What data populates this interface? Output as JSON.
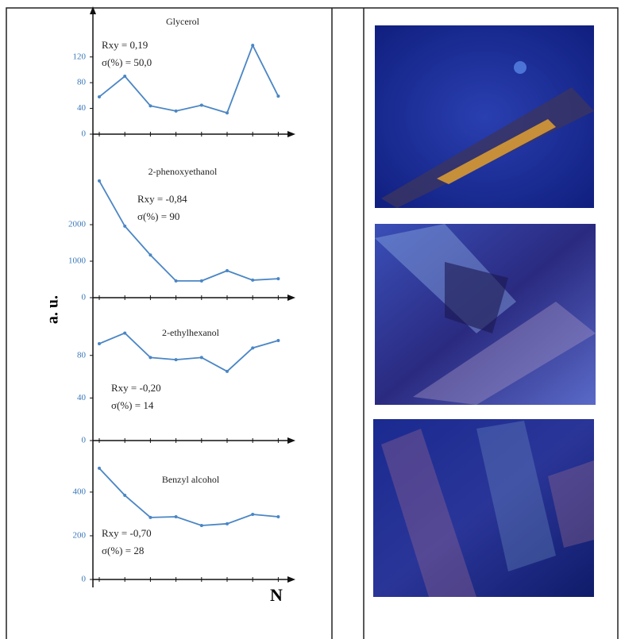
{
  "y_label": "a. u.",
  "x_label": "N",
  "chart_data": [
    {
      "type": "line",
      "title": "Glycerol",
      "annotations": [
        "Rxy = 0,19",
        "σ(%) = 50,0"
      ],
      "categories": [
        null,
        null,
        null,
        null,
        null,
        null,
        null,
        null
      ],
      "values": [
        58,
        90,
        44,
        36,
        45,
        33,
        138,
        59
      ],
      "color": "#4a86c5",
      "ylim": [
        0,
        190
      ],
      "yticks": [
        0,
        40,
        80,
        120
      ]
    },
    {
      "type": "line",
      "title": "2-phenoxyethanol",
      "annotations": [
        "Rxy = -0,84",
        "σ(%) = 90"
      ],
      "categories": [
        null,
        null,
        null,
        null,
        null,
        null,
        null,
        null
      ],
      "values": [
        3200,
        1960,
        1170,
        460,
        460,
        740,
        480,
        520
      ],
      "color": "#4a86c5",
      "ylim": [
        0,
        4350
      ],
      "yticks": [
        0,
        1000,
        2000
      ]
    },
    {
      "type": "line",
      "title": "2-ethylhexanol",
      "annotations": [
        "Rxy = -0,20",
        "σ(%) = 14"
      ],
      "categories": [
        null,
        null,
        null,
        null,
        null,
        null,
        null,
        null
      ],
      "values": [
        91,
        101,
        78,
        76,
        78,
        65,
        87,
        94
      ],
      "color": "#4a86c5",
      "ylim": [
        0,
        132
      ],
      "yticks": [
        0,
        40,
        80
      ]
    },
    {
      "type": "line",
      "title": "Benzyl alcohol",
      "annotations": [
        "Rxy = -0,70",
        "σ(%) = 28"
      ],
      "categories": [
        null,
        null,
        null,
        null,
        null,
        null,
        null,
        null
      ],
      "values": [
        509,
        385,
        284,
        287,
        247,
        255,
        298,
        287
      ],
      "color": "#4a86c5",
      "ylim": [
        0,
        625
      ],
      "yticks": [
        0,
        200,
        400
      ]
    }
  ]
}
